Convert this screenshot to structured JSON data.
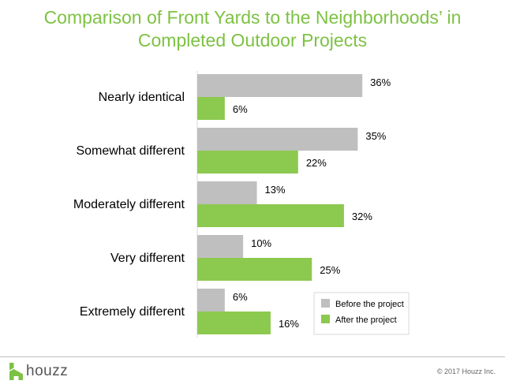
{
  "brand": {
    "logo_text": "houzz",
    "copyright": "© 2017 Houzz Inc."
  },
  "colors": {
    "title": "#7dc243",
    "before": "#bfbfbf",
    "after": "#8cc94f",
    "axis": "#d9d9d9"
  },
  "chart_data": {
    "type": "bar",
    "orientation": "horizontal",
    "title": "Comparison of Front Yards to the Neighborhoods’ in Completed Outdoor Projects",
    "title_lines": [
      "Comparison of Front Yards to the Neighborhoods’ in",
      "Completed Outdoor Projects"
    ],
    "categories": [
      "Nearly identical",
      "Somewhat different",
      "Moderately different",
      "Very different",
      "Extremely different"
    ],
    "series": [
      {
        "name": "Before the project",
        "values": [
          36,
          35,
          13,
          10,
          6
        ],
        "labels": [
          "36%",
          "35%",
          "13%",
          "10%",
          "6%"
        ]
      },
      {
        "name": "After the project",
        "values": [
          6,
          22,
          32,
          25,
          16
        ],
        "labels": [
          "6%",
          "22%",
          "32%",
          "25%",
          "16%"
        ]
      }
    ],
    "xlim": [
      0,
      40
    ],
    "unit": "%",
    "grid": false,
    "legend_position": "bottom-right"
  }
}
